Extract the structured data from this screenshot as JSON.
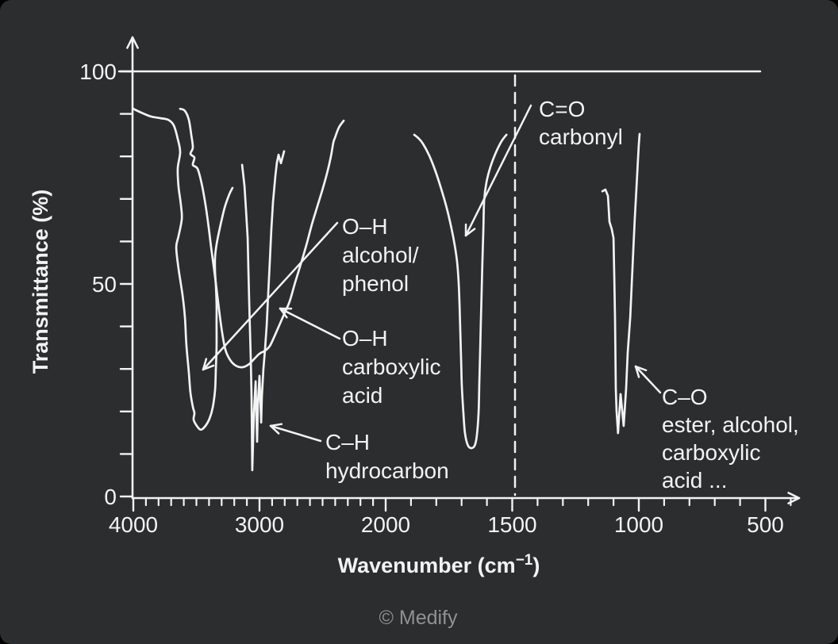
{
  "figure": {
    "background": "#2b2d2e",
    "ink": "#f3f3f3",
    "watermark_color": "#8f9193",
    "watermark": "© Medify"
  },
  "chart_data": {
    "type": "line",
    "title": "",
    "ylabel": "Transmittance (%)",
    "xlabel": {
      "pre": "Wavenumber (cm",
      "sup": "−1",
      "post": ")"
    },
    "x_axis": {
      "unit": "cm−1",
      "direction": "decreasing left-to-right",
      "major_ticks": [
        4000,
        3000,
        2000,
        1500,
        1000,
        500
      ],
      "minor_tick_step": 100,
      "minor_tick_range": [
        3900,
        400
      ],
      "scale_note": "axis scale doubles below 2000 cm-1 (standard IR scale break)"
    },
    "y_axis": {
      "range": [
        0,
        100
      ],
      "labeled_ticks": [
        0,
        50,
        100
      ],
      "minor_tick_step": 10
    },
    "reference_lines": {
      "horizontal_100_percent": true,
      "dashed_vertical_at": 1500
    },
    "series": [
      {
        "id": "band-oh-alcohol",
        "name": "O–H alcohol/phenol band",
        "center": 3465,
        "min_transmittance": 16,
        "points": [
          [
            4000,
            91.2
          ],
          [
            3937,
            90.3
          ],
          [
            3862,
            89.4
          ],
          [
            3786,
            89.0
          ],
          [
            3723,
            88.6
          ],
          [
            3679,
            87.3
          ],
          [
            3648,
            84.1
          ],
          [
            3629,
            81.0
          ],
          [
            3648,
            77.2
          ],
          [
            3642,
            73.0
          ],
          [
            3623,
            68.7
          ],
          [
            3616,
            65.3
          ],
          [
            3642,
            61.2
          ],
          [
            3660,
            58.6
          ],
          [
            3642,
            53.7
          ],
          [
            3610,
            47.4
          ],
          [
            3591,
            42.2
          ],
          [
            3579,
            35.6
          ],
          [
            3560,
            29.1
          ],
          [
            3547,
            24.4
          ],
          [
            3528,
            21.1
          ],
          [
            3516,
            19.6
          ],
          [
            3522,
            18.1
          ],
          [
            3497,
            16.6
          ],
          [
            3465,
            15.7
          ],
          [
            3428,
            16.6
          ],
          [
            3396,
            18.3
          ],
          [
            3371,
            20.9
          ],
          [
            3352,
            25.0
          ],
          [
            3346,
            30.0
          ],
          [
            3340,
            35.1
          ],
          [
            3340,
            40.3
          ],
          [
            3340,
            45.3
          ],
          [
            3346,
            49.6
          ],
          [
            3352,
            53.0
          ],
          [
            3352,
            56.2
          ],
          [
            3340,
            59.3
          ],
          [
            3314,
            63.2
          ],
          [
            3277,
            67.9
          ],
          [
            3239,
            71.1
          ],
          [
            3214,
            72.6
          ]
        ]
      },
      {
        "id": "band-oh-carboxylic",
        "name": "O–H carboxylic acid band",
        "center": 3100,
        "min_transmittance": 30,
        "points": [
          [
            3629,
            91.2
          ],
          [
            3591,
            90.7
          ],
          [
            3560,
            88.6
          ],
          [
            3541,
            85.1
          ],
          [
            3528,
            82.1
          ],
          [
            3547,
            80.6
          ],
          [
            3516,
            79.7
          ],
          [
            3528,
            78.0
          ],
          [
            3491,
            77.1
          ],
          [
            3459,
            73.7
          ],
          [
            3428,
            68.7
          ],
          [
            3403,
            63.4
          ],
          [
            3384,
            58.8
          ],
          [
            3365,
            54.5
          ],
          [
            3346,
            50.2
          ],
          [
            3321,
            44.0
          ],
          [
            3296,
            38.6
          ],
          [
            3270,
            34.5
          ],
          [
            3233,
            32.1
          ],
          [
            3189,
            30.8
          ],
          [
            3138,
            30.4
          ],
          [
            3088,
            31.0
          ],
          [
            3044,
            32.3
          ],
          [
            3000,
            33.6
          ],
          [
            2956,
            34.3
          ],
          [
            2918,
            35.4
          ],
          [
            2881,
            37.7
          ],
          [
            2843,
            40.3
          ],
          [
            2805,
            42.9
          ],
          [
            2761,
            45.9
          ],
          [
            2717,
            50.4
          ],
          [
            2667,
            55.2
          ],
          [
            2623,
            59.7
          ],
          [
            2585,
            64.0
          ],
          [
            2541,
            68.3
          ],
          [
            2497,
            72.6
          ],
          [
            2459,
            76.7
          ],
          [
            2434,
            80.0
          ],
          [
            2415,
            83.2
          ],
          [
            2403,
            84.3
          ],
          [
            2371,
            86.8
          ],
          [
            2333,
            88.4
          ]
        ]
      },
      {
        "id": "band-ch-hydrocarbon",
        "name": "C–H hydrocarbon band",
        "center": 2960,
        "min_transmittance": 6,
        "points": [
          [
            3138,
            78.0
          ],
          [
            3119,
            73.0
          ],
          [
            3107,
            67.4
          ],
          [
            3094,
            60.8
          ],
          [
            3088,
            53.4
          ],
          [
            3082,
            45.9
          ],
          [
            3075,
            38.4
          ],
          [
            3069,
            32.5
          ],
          [
            3063,
            23.5
          ],
          [
            3057,
            6.2
          ],
          [
            3044,
            19.8
          ],
          [
            3031,
            27.1
          ],
          [
            3025,
            19.8
          ],
          [
            3019,
            12.9
          ],
          [
            3013,
            21.6
          ],
          [
            3000,
            28.4
          ],
          [
            2994,
            22.6
          ],
          [
            2987,
            17.4
          ],
          [
            2981,
            23.5
          ],
          [
            2969,
            29.9
          ],
          [
            2956,
            34.7
          ],
          [
            2943,
            40.3
          ],
          [
            2931,
            47.8
          ],
          [
            2918,
            55.2
          ],
          [
            2906,
            62.7
          ],
          [
            2893,
            69.2
          ],
          [
            2874,
            75.4
          ],
          [
            2862,
            78.5
          ],
          [
            2849,
            80.4
          ],
          [
            2830,
            78.4
          ],
          [
            2805,
            81.2
          ]
        ]
      },
      {
        "id": "band-co-carbonyl",
        "name": "C=O carbonyl band",
        "center": 1670,
        "min_transmittance": 11,
        "points": [
          [
            1887,
            85.1
          ],
          [
            1871,
            84.3
          ],
          [
            1853,
            83.0
          ],
          [
            1828,
            80.2
          ],
          [
            1803,
            76.5
          ],
          [
            1781,
            72.4
          ],
          [
            1759,
            67.9
          ],
          [
            1740,
            63.1
          ],
          [
            1727,
            59.0
          ],
          [
            1718,
            55.2
          ],
          [
            1712,
            50.6
          ],
          [
            1708,
            45.0
          ],
          [
            1705,
            38.4
          ],
          [
            1702,
            31.9
          ],
          [
            1699,
            25.9
          ],
          [
            1693,
            19.8
          ],
          [
            1687,
            15.1
          ],
          [
            1677,
            12.3
          ],
          [
            1665,
            11.4
          ],
          [
            1649,
            11.9
          ],
          [
            1640,
            14.2
          ],
          [
            1633,
            19.8
          ],
          [
            1630,
            26.7
          ],
          [
            1627,
            33.8
          ],
          [
            1624,
            40.7
          ],
          [
            1621,
            47.8
          ],
          [
            1618,
            55.2
          ],
          [
            1614,
            62.7
          ],
          [
            1611,
            69.6
          ],
          [
            1602,
            73.9
          ],
          [
            1586,
            77.6
          ],
          [
            1564,
            81.0
          ],
          [
            1542,
            83.6
          ],
          [
            1523,
            85.1
          ]
        ]
      },
      {
        "id": "band-c-o-single",
        "name": "C–O ester/alcohol/carboxylic acid band",
        "center": 1070,
        "min_transmittance": 15,
        "points": [
          [
            1144,
            71.8
          ],
          [
            1132,
            72.2
          ],
          [
            1122,
            70.7
          ],
          [
            1119,
            67.9
          ],
          [
            1116,
            64.6
          ],
          [
            1107,
            62.9
          ],
          [
            1100,
            60.8
          ],
          [
            1097,
            51.5
          ],
          [
            1094,
            42.2
          ],
          [
            1091,
            25.4
          ],
          [
            1088,
            20.3
          ],
          [
            1082,
            14.9
          ],
          [
            1072,
            24.1
          ],
          [
            1060,
            16.6
          ],
          [
            1050,
            25.4
          ],
          [
            1044,
            33.8
          ],
          [
            1034,
            42.2
          ],
          [
            1028,
            50.0
          ],
          [
            1022,
            57.8
          ],
          [
            1016,
            65.3
          ],
          [
            1009,
            72.8
          ],
          [
            1003,
            79.5
          ],
          [
            1000,
            82.8
          ],
          [
            997,
            85.3
          ]
        ]
      }
    ],
    "annotations": [
      {
        "id": "oh-alcohol",
        "lines": [
          "O–H",
          "alcohol/",
          "phenol"
        ]
      },
      {
        "id": "oh-carboxylic",
        "lines": [
          "O–H",
          "carboxylic",
          "acid"
        ]
      },
      {
        "id": "ch-hydrocarbon",
        "lines": [
          "C–H",
          "hydrocarbon"
        ]
      },
      {
        "id": "co-carbonyl",
        "lines": [
          "C=O",
          "carbonyl"
        ]
      },
      {
        "id": "c-o-ester",
        "lines": [
          "C–O",
          "ester, alcohol,",
          "carboxylic",
          "acid ..."
        ]
      }
    ]
  }
}
